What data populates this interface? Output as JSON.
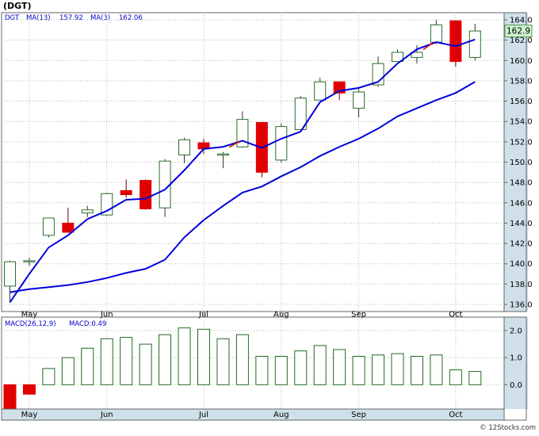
{
  "title": "(DGT)",
  "legend_top": {
    "symbol": "DGT",
    "ma13_label": "MA(13)",
    "ma13_value": "157.92",
    "ma3_label": "MA(3)",
    "ma3_value": "162.06"
  },
  "legend_macd": {
    "label": "MACD(26,12,9)",
    "value_label": "MACD:0.49"
  },
  "last_price_label": "162.9",
  "watermark": "© 12Stocks.com",
  "colors": {
    "up_candle": "#2a6e2a",
    "down_candle": "#e00000",
    "ma_line": "#0000dd",
    "ma3_last_segment": "#dd0000",
    "axis_band": "#cfe0ea",
    "price_box": "#ccf0cc",
    "macd_bar": "#1f6a1f"
  },
  "chart_data": [
    {
      "type": "candlestick",
      "title": "(DGT)",
      "series_names": [
        "DGT",
        "MA(13)",
        "MA(3)"
      ],
      "x_tick_labels": [
        "May",
        "Jun",
        "Jul",
        "Aug",
        "Sep",
        "Oct"
      ],
      "x_tick_week_index": [
        1,
        5,
        10,
        14,
        18,
        23
      ],
      "y_ticks": [
        136.0,
        138.0,
        140.0,
        142.0,
        144.0,
        146.0,
        148.0,
        150.0,
        152.0,
        154.0,
        156.0,
        158.0,
        160.0,
        162.0,
        164.0
      ],
      "ylim": [
        135.3,
        164.7
      ],
      "last_price": 162.9,
      "candles": [
        {
          "o": 137.8,
          "h": 140.3,
          "l": 136.2,
          "c": 140.2
        },
        {
          "o": 140.3,
          "h": 140.6,
          "l": 139.8,
          "c": 140.3
        },
        {
          "o": 142.8,
          "h": 144.5,
          "l": 142.6,
          "c": 144.5
        },
        {
          "o": 144.0,
          "h": 145.5,
          "l": 143.1,
          "c": 143.1
        },
        {
          "o": 145.0,
          "h": 145.7,
          "l": 144.6,
          "c": 145.3
        },
        {
          "o": 144.8,
          "h": 147.0,
          "l": 144.7,
          "c": 146.9
        },
        {
          "o": 147.2,
          "h": 148.3,
          "l": 146.5,
          "c": 146.8
        },
        {
          "o": 148.2,
          "h": 148.3,
          "l": 145.3,
          "c": 145.4
        },
        {
          "o": 145.5,
          "h": 150.3,
          "l": 144.6,
          "c": 150.1
        },
        {
          "o": 150.7,
          "h": 152.4,
          "l": 149.9,
          "c": 152.2
        },
        {
          "o": 151.9,
          "h": 152.3,
          "l": 150.8,
          "c": 151.3
        },
        {
          "o": 150.8,
          "h": 151.0,
          "l": 149.4,
          "c": 150.8
        },
        {
          "o": 151.5,
          "h": 155.0,
          "l": 151.4,
          "c": 154.2
        },
        {
          "o": 153.9,
          "h": 153.9,
          "l": 148.5,
          "c": 149.0
        },
        {
          "o": 150.2,
          "h": 153.8,
          "l": 150.0,
          "c": 153.5
        },
        {
          "o": 153.2,
          "h": 156.5,
          "l": 153.2,
          "c": 156.3
        },
        {
          "o": 156.1,
          "h": 158.3,
          "l": 156.1,
          "c": 157.9
        },
        {
          "o": 157.9,
          "h": 157.9,
          "l": 156.1,
          "c": 156.8
        },
        {
          "o": 155.3,
          "h": 157.2,
          "l": 154.4,
          "c": 156.9
        },
        {
          "o": 157.6,
          "h": 160.4,
          "l": 157.4,
          "c": 159.7
        },
        {
          "o": 159.9,
          "h": 161.1,
          "l": 159.9,
          "c": 160.8
        },
        {
          "o": 160.3,
          "h": 161.5,
          "l": 159.7,
          "c": 160.8
        },
        {
          "o": 161.8,
          "h": 164.0,
          "l": 161.6,
          "c": 163.5
        },
        {
          "o": 163.9,
          "h": 163.9,
          "l": 159.4,
          "c": 159.9
        },
        {
          "o": 160.3,
          "h": 163.6,
          "l": 160.0,
          "c": 162.9
        }
      ],
      "ma13": [
        137.2,
        137.5,
        137.7,
        137.9,
        138.2,
        138.6,
        139.1,
        139.5,
        140.4,
        142.6,
        144.3,
        145.7,
        147.0,
        147.6,
        148.6,
        149.5,
        150.6,
        151.5,
        152.3,
        153.3,
        154.5,
        155.3,
        156.1,
        156.8,
        157.9
      ],
      "ma3": [
        136.2,
        139.0,
        141.6,
        142.8,
        144.4,
        145.2,
        146.3,
        146.4,
        147.3,
        149.2,
        151.3,
        151.5,
        152.1,
        151.4,
        152.3,
        153.0,
        155.9,
        157.0,
        157.3,
        157.9,
        159.7,
        161.1,
        161.8,
        161.4,
        162.06
      ]
    },
    {
      "type": "bar",
      "title": "MACD(26,12,9)",
      "series_names": [
        "MACD"
      ],
      "x_tick_labels": [
        "May",
        "Jun",
        "Jul",
        "Aug",
        "Sep",
        "Oct"
      ],
      "x_tick_week_index": [
        1,
        5,
        10,
        14,
        18,
        23
      ],
      "y_ticks": [
        0.0,
        1.0,
        2.0
      ],
      "ylim": [
        -0.9,
        2.5
      ],
      "last_value": 0.49,
      "values": [
        -0.9,
        -0.35,
        0.6,
        1.0,
        1.35,
        1.7,
        1.75,
        1.5,
        1.85,
        2.1,
        2.05,
        1.7,
        1.85,
        1.05,
        1.05,
        1.25,
        1.45,
        1.3,
        1.05,
        1.1,
        1.15,
        1.05,
        1.1,
        0.55,
        0.49
      ]
    }
  ]
}
